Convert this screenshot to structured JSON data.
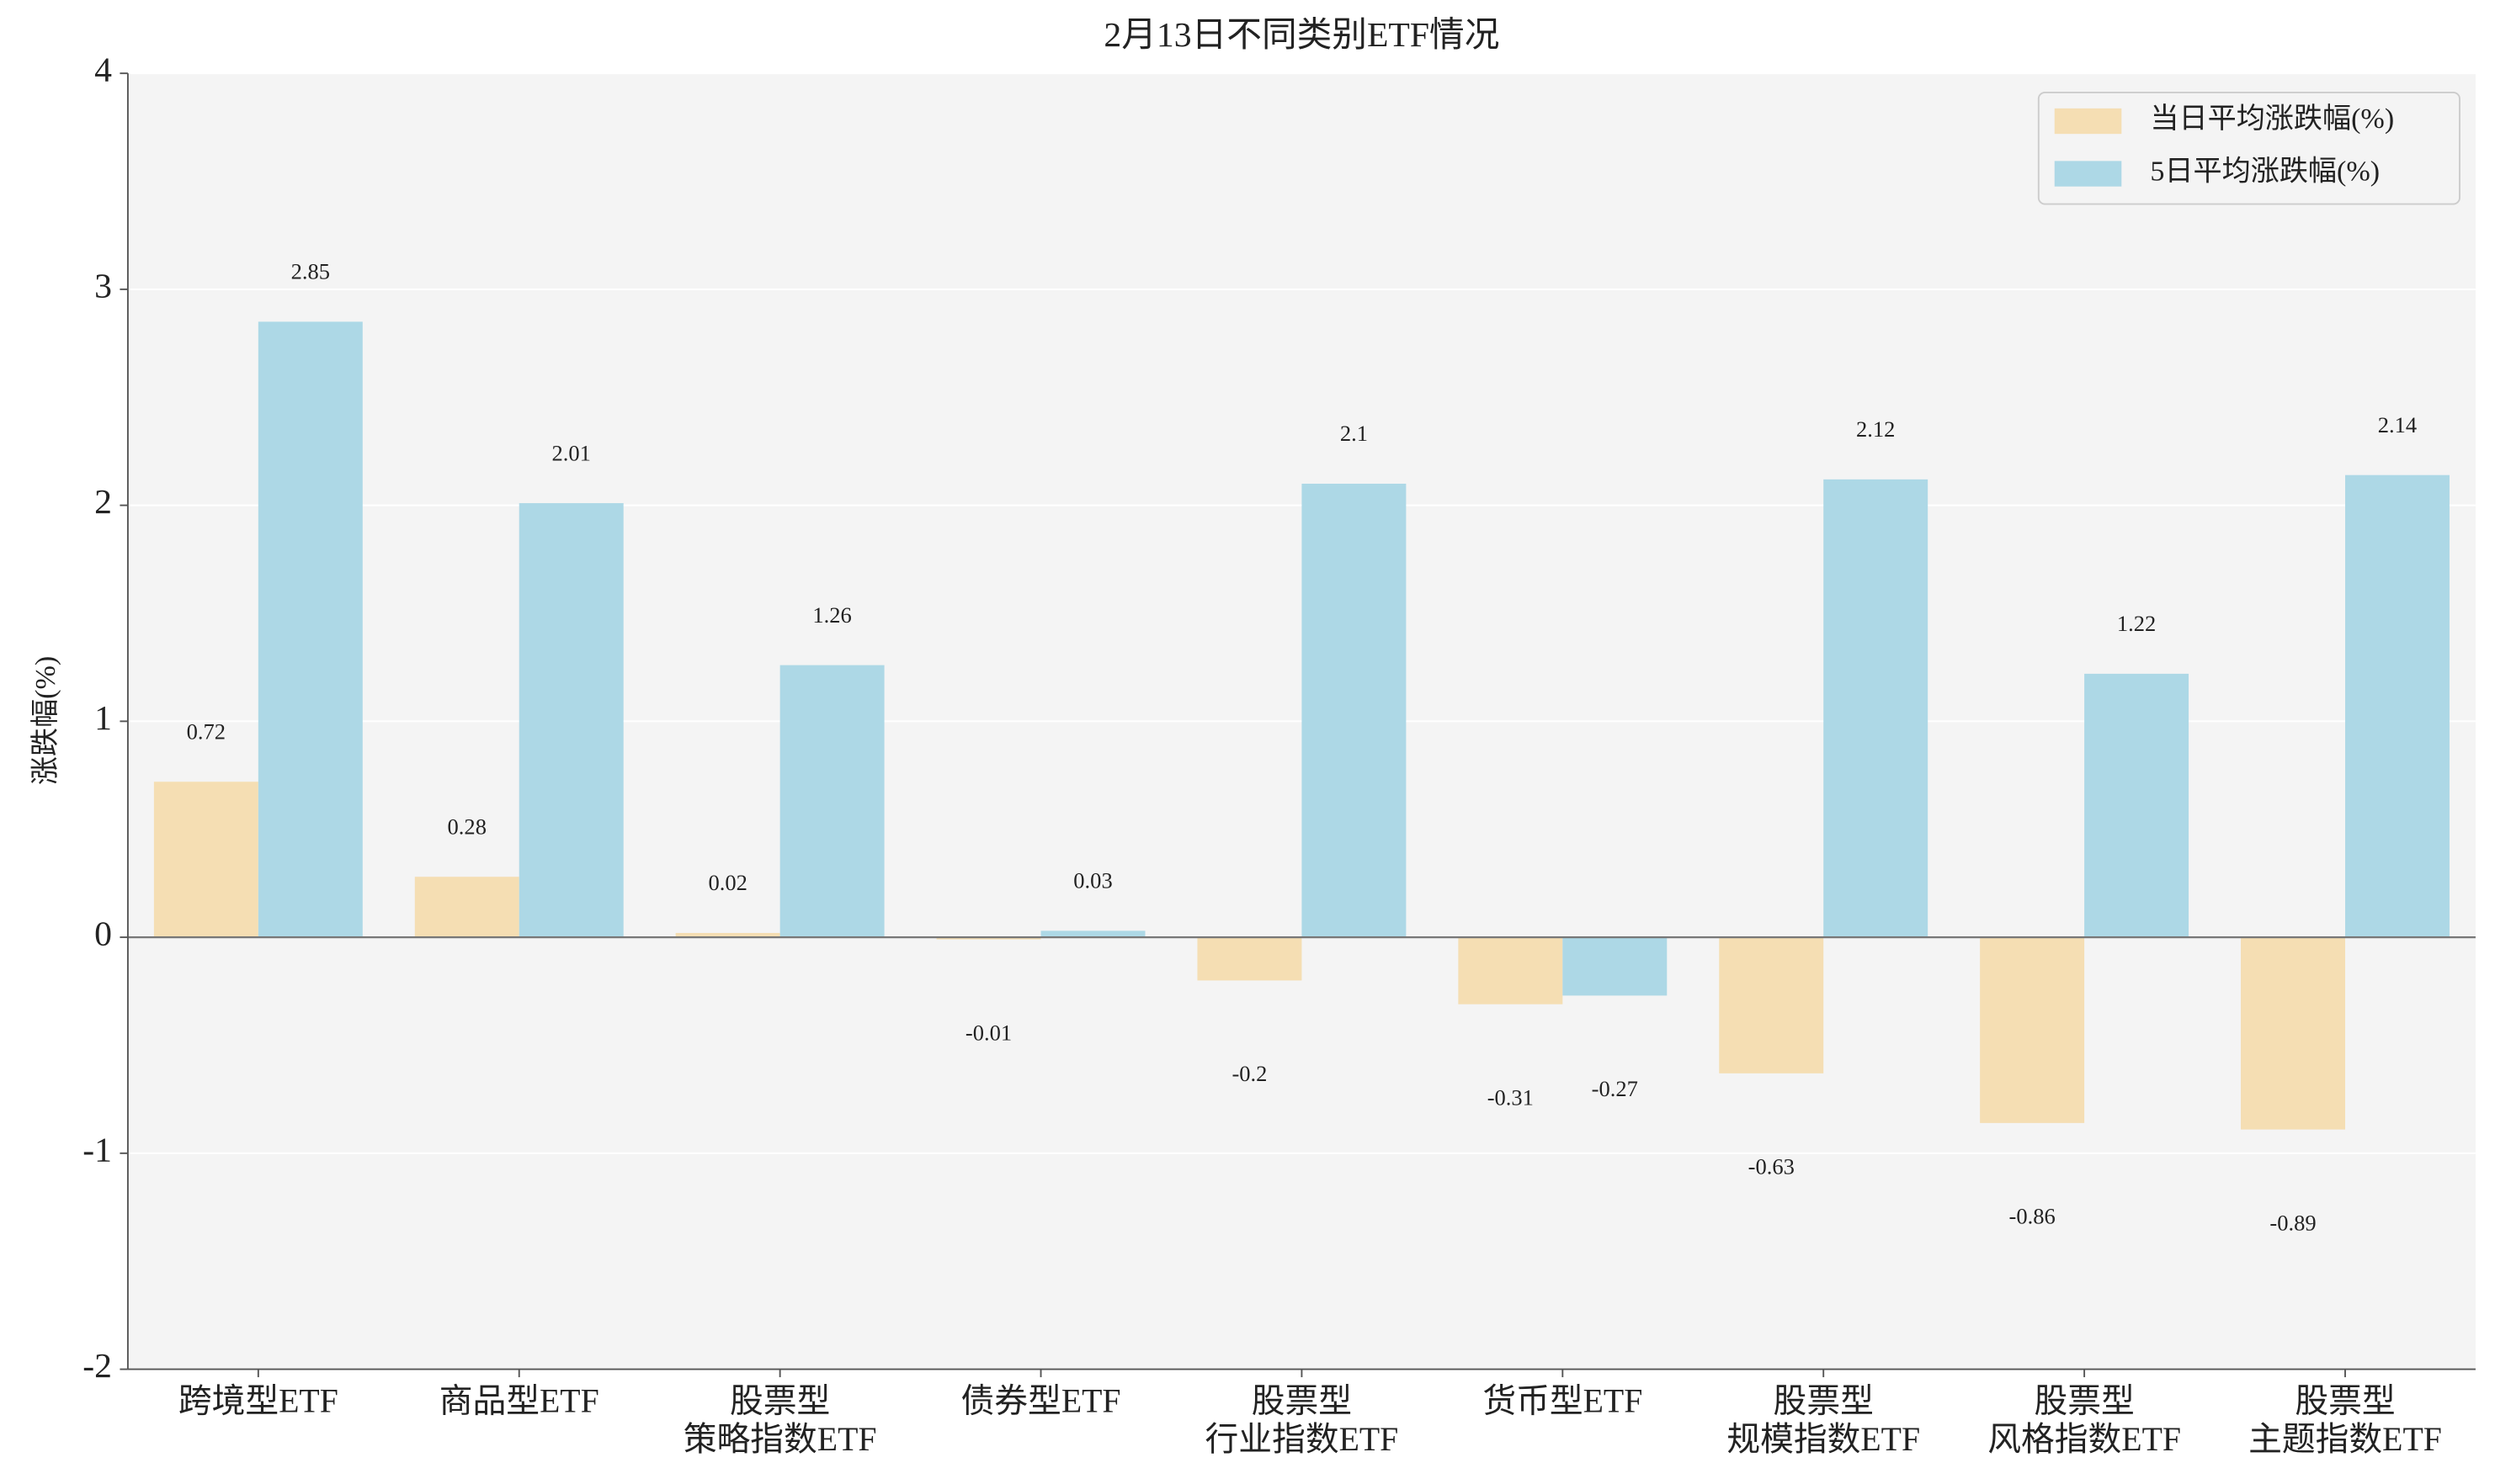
{
  "chart_data": {
    "type": "bar",
    "title": "2月13日不同类别ETF情况",
    "y_label": "涨跌幅(%)",
    "categories": [
      [
        "跨境型ETF"
      ],
      [
        "商品型ETF"
      ],
      [
        "股票型",
        "策略指数ETF"
      ],
      [
        "债券型ETF"
      ],
      [
        "股票型",
        "行业指数ETF"
      ],
      [
        "货币型ETF"
      ],
      [
        "股票型",
        "规模指数ETF"
      ],
      [
        "股票型",
        "风格指数ETF"
      ],
      [
        "股票型",
        "主题指数ETF"
      ]
    ],
    "series": [
      {
        "name": "当日平均涨跌幅(%)",
        "color": "#f5deb3",
        "values": [
          0.72,
          0.28,
          0.02,
          -0.01,
          -0.2,
          -0.31,
          -0.63,
          -0.86,
          -0.89
        ]
      },
      {
        "name": "5日平均涨跌幅(%)",
        "color": "#add8e6",
        "values": [
          2.85,
          2.01,
          1.26,
          0.03,
          2.1,
          -0.27,
          2.12,
          1.22,
          2.14
        ]
      }
    ],
    "ylim": [
      -2,
      4
    ],
    "yticks": [
      -2,
      -1,
      0,
      1,
      2,
      3,
      4
    ],
    "grid": true,
    "legend": "upper right"
  }
}
